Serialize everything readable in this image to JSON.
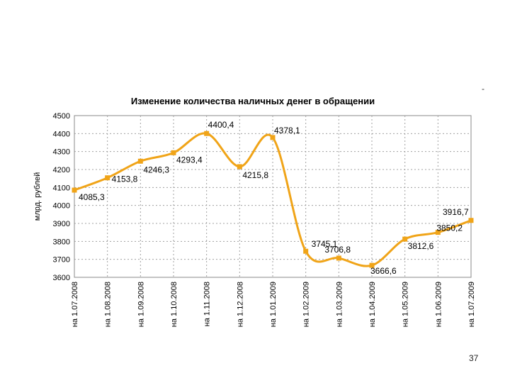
{
  "slide": {
    "dash": "-",
    "page_number": "37"
  },
  "chart_data": {
    "type": "line",
    "title": "Изменение количества наличных денег в обращении",
    "ylabel": "млрд. рублей",
    "xlabel": "",
    "ylim": [
      3600,
      4500
    ],
    "yticks": [
      3600,
      3700,
      3800,
      3900,
      4000,
      4100,
      4200,
      4300,
      4400,
      4500
    ],
    "grid": true,
    "line_color": "#f0a418",
    "categories": [
      "на 1.07.2008",
      "на 1.08.2008",
      "на 1.09.2008",
      "на 1.10.2008",
      "на 1.11.2008",
      "на 1.12.2008",
      "на 1.01.2009",
      "на 1.02.2009",
      "на 1.03.2009",
      "на 1.04.2009",
      "на 1.05.2009",
      "на 1.06.2009",
      "на 1.07.2009"
    ],
    "values": [
      4085.3,
      4153.8,
      4246.3,
      4293.4,
      4400.4,
      4215.8,
      4378.1,
      3745.1,
      3706.8,
      3666.6,
      3812.6,
      3850.2,
      3916.7
    ],
    "data_labels": [
      "4085,3",
      "4153,8",
      "4246,3",
      "4293,4",
      "4400,4",
      "4215,8",
      "4378,1",
      "3745,1",
      "3706,8",
      "3666,6",
      "3812,6",
      "3850,2",
      "3916,7"
    ]
  }
}
